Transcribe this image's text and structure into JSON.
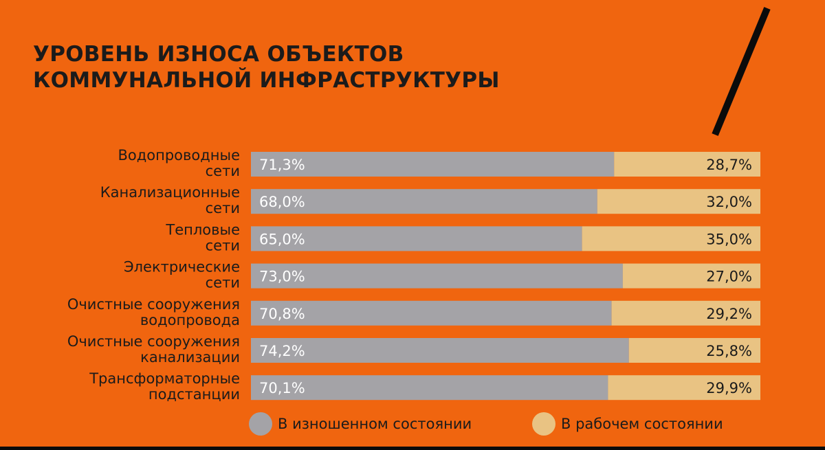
{
  "title_lines": [
    "УРОВЕНЬ ИЗНОСА ОБЪЕКТОВ",
    "КОММУНАЛЬНОЙ ИНФРАСТРУКТУРЫ"
  ],
  "colors": {
    "background": "#f0650f",
    "worn": "#a4a3a7",
    "working": "#e9c383",
    "text": "#1b1b1b",
    "value_text_on_worn": "#ffffff",
    "value_text_on_working": "#1b1b1b"
  },
  "chart_data": {
    "type": "bar",
    "orientation": "horizontal",
    "stacked": true,
    "title": "УРОВЕНЬ ИЗНОСА ОБЪЕКТОВ КОММУНАЛЬНОЙ ИНФРАСТРУКТУРЫ",
    "xlim": [
      0,
      100
    ],
    "unit": "%",
    "legend_placement": "bottom",
    "categories": [
      {
        "line1": "Водопроводные",
        "line2": "сети"
      },
      {
        "line1": "Канализационные",
        "line2": "сети"
      },
      {
        "line1": "Тепловые",
        "line2": "сети"
      },
      {
        "line1": "Электрические",
        "line2": "сети"
      },
      {
        "line1": "Очистные сооружения",
        "line2": "водопровода"
      },
      {
        "line1": "Очистные сооружения",
        "line2": "канализации"
      },
      {
        "line1": "Трансформаторные",
        "line2": "подстанции"
      }
    ],
    "series": [
      {
        "name": "В изношенном состоянии",
        "color": "#a4a3a7",
        "values": [
          71.3,
          68.0,
          65.0,
          73.0,
          70.8,
          74.2,
          70.1
        ],
        "labels": [
          "71,3%",
          "68,0%",
          "65,0%",
          "73,0%",
          "70,8%",
          "74,2%",
          "70,1%"
        ]
      },
      {
        "name": "В рабочем состоянии",
        "color": "#e9c383",
        "values": [
          28.7,
          32.0,
          35.0,
          27.0,
          29.2,
          25.8,
          29.9
        ],
        "labels": [
          "28,7%",
          "32,0%",
          "35,0%",
          "27,0%",
          "29,2%",
          "25,8%",
          "29,9%"
        ]
      }
    ]
  },
  "legend": {
    "worn_label": "В изношенном состоянии",
    "working_label": "В рабочем состоянии"
  }
}
